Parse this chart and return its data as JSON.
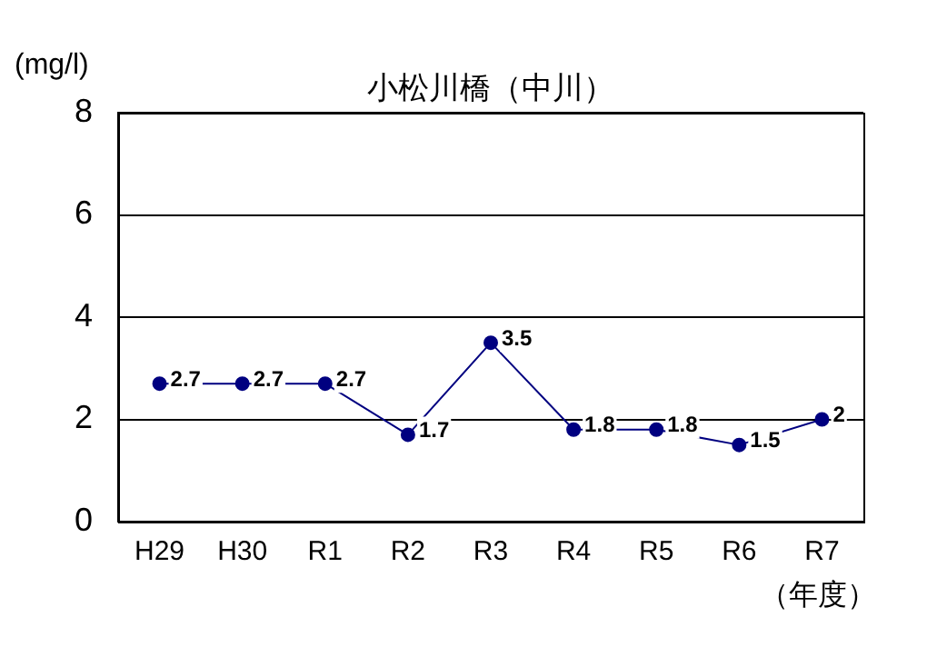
{
  "chart_data": {
    "type": "line",
    "title": "小松川橋（中川）",
    "ylabel": "(mg/l)",
    "xlabel": "（年度）",
    "categories": [
      "H29",
      "H30",
      "R1",
      "R2",
      "R3",
      "R4",
      "R5",
      "R6",
      "R7"
    ],
    "series": [
      {
        "color": "#000080",
        "values": [
          2.7,
          2.7,
          2.7,
          1.7,
          3.5,
          1.8,
          1.8,
          1.5,
          2
        ]
      }
    ],
    "ylim": [
      0,
      8
    ],
    "yticks": [
      0,
      2,
      4,
      6,
      8
    ],
    "grid": "y",
    "marker": "circle",
    "line_style": "solid",
    "data_labels": true
  }
}
